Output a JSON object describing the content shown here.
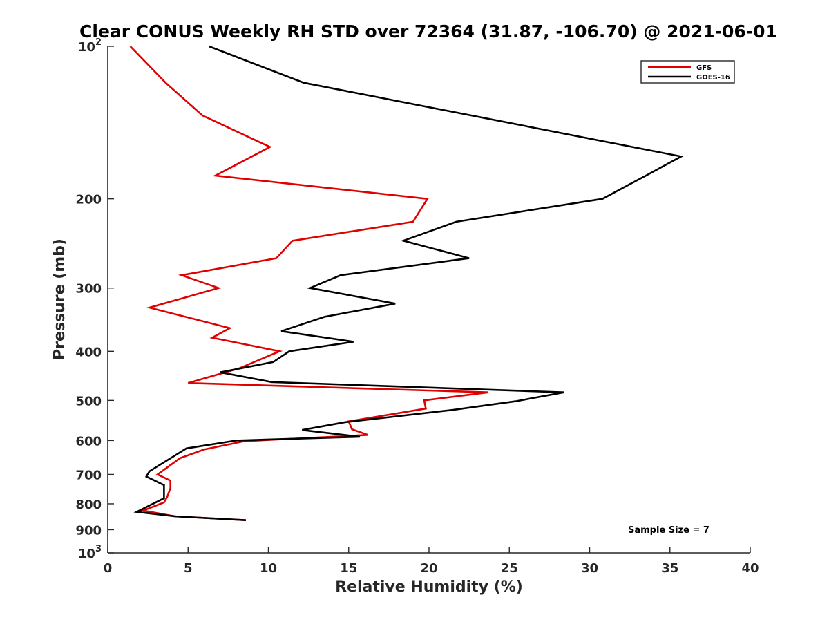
{
  "chart_data": {
    "type": "line",
    "title": "Clear CONUS Weekly RH STD over 72364 (31.87, -106.70) @ 2021-06-01",
    "xlabel": "Relative Humidity (%)",
    "ylabel": "Pressure (mb)",
    "xlim": [
      0,
      40
    ],
    "ylim": [
      100,
      1000
    ],
    "y_scale": "log",
    "y_reversed": true,
    "grid": false,
    "legend_position": "top-right",
    "x_ticks": [
      0,
      5,
      10,
      15,
      20,
      25,
      30,
      35,
      40
    ],
    "x_tick_labels": [
      "0",
      "5",
      "10",
      "15",
      "20",
      "25",
      "30",
      "35",
      "40"
    ],
    "y_ticks": [
      100,
      200,
      300,
      400,
      500,
      600,
      700,
      800,
      900,
      1000
    ],
    "y_tick_labels": [
      "10^2",
      "200",
      "300",
      "400",
      "500",
      "600",
      "700",
      "800",
      "900",
      "10^3"
    ],
    "annotation": "Sample Size = 7",
    "series": [
      {
        "name": "GFS",
        "color": "#e00000",
        "points": [
          {
            "x": 1.4,
            "p": 100
          },
          {
            "x": 3.6,
            "p": 118
          },
          {
            "x": 5.9,
            "p": 137
          },
          {
            "x": 10.1,
            "p": 158
          },
          {
            "x": 6.7,
            "p": 180
          },
          {
            "x": 19.9,
            "p": 200
          },
          {
            "x": 19.0,
            "p": 222
          },
          {
            "x": 11.5,
            "p": 242
          },
          {
            "x": 10.5,
            "p": 262
          },
          {
            "x": 4.6,
            "p": 283
          },
          {
            "x": 6.9,
            "p": 300
          },
          {
            "x": 2.6,
            "p": 328
          },
          {
            "x": 7.6,
            "p": 360
          },
          {
            "x": 6.5,
            "p": 376
          },
          {
            "x": 10.7,
            "p": 400
          },
          {
            "x": 8.2,
            "p": 432
          },
          {
            "x": 5.0,
            "p": 462
          },
          {
            "x": 23.7,
            "p": 482
          },
          {
            "x": 19.7,
            "p": 500
          },
          {
            "x": 19.8,
            "p": 519
          },
          {
            "x": 15.0,
            "p": 550
          },
          {
            "x": 15.2,
            "p": 570
          },
          {
            "x": 16.2,
            "p": 585
          },
          {
            "x": 8.5,
            "p": 602
          },
          {
            "x": 6.0,
            "p": 625
          },
          {
            "x": 4.5,
            "p": 650
          },
          {
            "x": 3.1,
            "p": 700
          },
          {
            "x": 3.9,
            "p": 720
          },
          {
            "x": 3.9,
            "p": 745
          },
          {
            "x": 3.7,
            "p": 775
          },
          {
            "x": 3.5,
            "p": 795
          },
          {
            "x": 2.2,
            "p": 825
          },
          {
            "x": 4.2,
            "p": 847
          },
          {
            "x": 8.6,
            "p": 862
          }
        ]
      },
      {
        "name": "GOES-16",
        "color": "#000000",
        "points": [
          {
            "x": 6.3,
            "p": 100
          },
          {
            "x": 12.2,
            "p": 118
          },
          {
            "x": 35.7,
            "p": 165
          },
          {
            "x": 33.5,
            "p": 180
          },
          {
            "x": 30.8,
            "p": 200
          },
          {
            "x": 21.7,
            "p": 222
          },
          {
            "x": 18.4,
            "p": 242
          },
          {
            "x": 22.5,
            "p": 262
          },
          {
            "x": 14.5,
            "p": 283
          },
          {
            "x": 12.6,
            "p": 300
          },
          {
            "x": 17.9,
            "p": 322
          },
          {
            "x": 13.5,
            "p": 342
          },
          {
            "x": 10.8,
            "p": 365
          },
          {
            "x": 15.3,
            "p": 383
          },
          {
            "x": 11.3,
            "p": 400
          },
          {
            "x": 10.3,
            "p": 420
          },
          {
            "x": 7.0,
            "p": 440
          },
          {
            "x": 10.2,
            "p": 460
          },
          {
            "x": 28.4,
            "p": 482
          },
          {
            "x": 25.4,
            "p": 502
          },
          {
            "x": 21.5,
            "p": 522
          },
          {
            "x": 14.8,
            "p": 552
          },
          {
            "x": 12.1,
            "p": 572
          },
          {
            "x": 15.7,
            "p": 590
          },
          {
            "x": 8.0,
            "p": 600
          },
          {
            "x": 4.9,
            "p": 622
          },
          {
            "x": 2.6,
            "p": 690
          },
          {
            "x": 2.4,
            "p": 707
          },
          {
            "x": 3.5,
            "p": 735
          },
          {
            "x": 3.5,
            "p": 780
          },
          {
            "x": 1.8,
            "p": 830
          },
          {
            "x": 4.2,
            "p": 847
          },
          {
            "x": 8.6,
            "p": 862
          }
        ]
      }
    ]
  }
}
